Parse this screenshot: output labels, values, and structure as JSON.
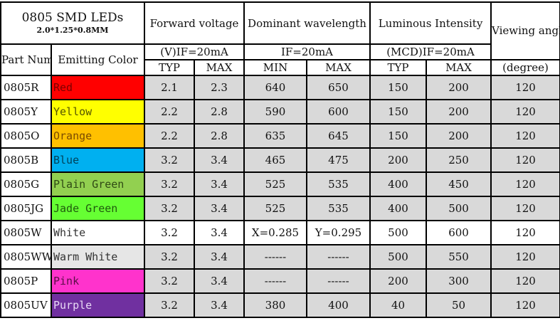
{
  "header": {
    "title": "0805 SMD LEDs",
    "subtitle": "2.0*1.25*0.8MM",
    "forward_voltage": "Forward voltage",
    "dominant_wavelength": "Dominant wavelength",
    "luminous_intensity": "Luminous Intensity",
    "viewing_angle": "Viewing angle",
    "part_number": "Part Number",
    "emitting_color": "Emitting Color",
    "fv_condition": "(V)IF=20mA",
    "dw_condition": "IF=20mA",
    "li_condition": "(MCD)IF=20mA",
    "fv_typ": "TYP",
    "fv_max": "MAX",
    "dw_min": "MIN",
    "dw_max": "MAX",
    "li_typ": "TYP",
    "li_max": "MAX",
    "angle_unit": "(degree)"
  },
  "colors": {
    "cell_gray": "#d9d9d9",
    "red": "#ff0000",
    "yellow": "#ffff00",
    "orange": "#ffc000",
    "blue": "#00b0f0",
    "plain_green": "#92d050",
    "jade_green": "#66ff33",
    "white": "#ffffff",
    "warm_white": "#e6e6e6",
    "pink": "#ff33cc",
    "purple": "#7030a0"
  },
  "rows": [
    {
      "part": "0805R",
      "color": "Red",
      "color_hex": "#ff0000",
      "text_hex": "#7a0000",
      "fv_typ": "2.1",
      "fv_max": "2.3",
      "dw_min": "640",
      "dw_max": "650",
      "li_typ": "150",
      "li_max": "200",
      "angle": "120"
    },
    {
      "part": "0805Y",
      "color": "Yellow",
      "color_hex": "#ffff00",
      "text_hex": "#555500",
      "fv_typ": "2.2",
      "fv_max": "2.8",
      "dw_min": "590",
      "dw_max": "600",
      "li_typ": "150",
      "li_max": "200",
      "angle": "120"
    },
    {
      "part": "0805O",
      "color": "Orange",
      "color_hex": "#ffc000",
      "text_hex": "#7a4a00",
      "fv_typ": "2.2",
      "fv_max": "2.8",
      "dw_min": "635",
      "dw_max": "645",
      "li_typ": "150",
      "li_max": "200",
      "angle": "120"
    },
    {
      "part": "0805B",
      "color": "Blue",
      "color_hex": "#00b0f0",
      "text_hex": "#00425a",
      "fv_typ": "3.2",
      "fv_max": "3.4",
      "dw_min": "465",
      "dw_max": "475",
      "li_typ": "200",
      "li_max": "250",
      "angle": "120"
    },
    {
      "part": "0805G",
      "color": "Plain Green",
      "color_hex": "#92d050",
      "text_hex": "#2f4a14",
      "fv_typ": "3.2",
      "fv_max": "3.4",
      "dw_min": "525",
      "dw_max": "535",
      "li_typ": "400",
      "li_max": "450",
      "angle": "120"
    },
    {
      "part": "0805JG",
      "color": "Jade Green",
      "color_hex": "#66ff33",
      "text_hex": "#1f5a0d",
      "fv_typ": "3.2",
      "fv_max": "3.4",
      "dw_min": "525",
      "dw_max": "535",
      "li_typ": "400",
      "li_max": "500",
      "angle": "120"
    },
    {
      "part": "0805W",
      "color": "White",
      "color_hex": "#ffffff",
      "text_hex": "#333333",
      "fv_typ": "3.2",
      "fv_max": "3.4",
      "dw_min": "X=0.285",
      "dw_max": "Y=0.295",
      "li_typ": "500",
      "li_max": "600",
      "angle": "120",
      "white_cells": true
    },
    {
      "part": "0805WW",
      "color": "Warm White",
      "color_hex": "#e6e6e6",
      "text_hex": "#333333",
      "fv_typ": "3.2",
      "fv_max": "3.4",
      "dw_min": "------",
      "dw_max": "------",
      "li_typ": "500",
      "li_max": "550",
      "angle": "120"
    },
    {
      "part": "0805P",
      "color": "Pink",
      "color_hex": "#ff33cc",
      "text_hex": "#5a0d46",
      "fv_typ": "3.2",
      "fv_max": "3.4",
      "dw_min": "------",
      "dw_max": "------",
      "li_typ": "200",
      "li_max": "300",
      "angle": "120"
    },
    {
      "part": "0805UV",
      "color": "Purple",
      "color_hex": "#7030a0",
      "text_hex": "#e8d8f5",
      "fv_typ": "3.2",
      "fv_max": "3.4",
      "dw_min": "380",
      "dw_max": "400",
      "li_typ": "40",
      "li_max": "50",
      "angle": "120"
    }
  ]
}
